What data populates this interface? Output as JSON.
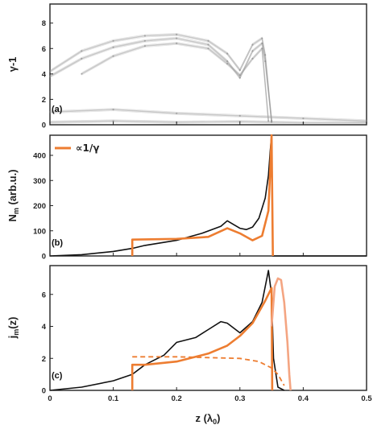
{
  "chart_data": [
    {
      "panel": "(a)",
      "type": "scatter",
      "ylabel": "γ-1",
      "xlim": [
        0,
        0.5
      ],
      "ylim": [
        0,
        9.5
      ],
      "yticks": [
        0,
        2,
        4,
        6,
        8
      ],
      "ytick_labels": [
        "0",
        "2",
        "4",
        "6",
        "8"
      ],
      "series": [
        {
          "x": [
            0.0,
            0.05,
            0.1,
            0.15,
            0.2,
            0.25,
            0.28,
            0.3,
            0.32,
            0.335,
            0.34,
            0.35
          ],
          "y": [
            4.2,
            5.8,
            6.6,
            7.0,
            7.1,
            6.6,
            5.6,
            4.3,
            6.3,
            6.8,
            5.5,
            0.3
          ]
        },
        {
          "x": [
            0.0,
            0.05,
            0.1,
            0.15,
            0.2,
            0.25,
            0.28,
            0.3,
            0.32,
            0.335,
            0.34,
            0.35
          ],
          "y": [
            3.8,
            5.2,
            6.1,
            6.6,
            6.8,
            6.3,
            5.0,
            3.7,
            5.8,
            6.4,
            5.0,
            0.3
          ]
        },
        {
          "x": [
            0.05,
            0.1,
            0.15,
            0.2,
            0.25,
            0.28,
            0.3,
            0.32,
            0.335,
            0.345
          ],
          "y": [
            4.0,
            5.4,
            6.2,
            6.4,
            6.0,
            4.8,
            3.9,
            5.2,
            6.0,
            0.3
          ]
        },
        {
          "x": [
            0.0,
            0.1,
            0.2,
            0.3,
            0.4,
            0.5
          ],
          "y": [
            1.0,
            1.2,
            0.9,
            0.7,
            0.5,
            0.3
          ]
        },
        {
          "x": [
            0.0,
            0.1,
            0.2,
            0.3,
            0.35,
            0.4,
            0.5
          ],
          "y": [
            0.2,
            0.3,
            0.2,
            0.25,
            0.2,
            0.15,
            0.15
          ]
        }
      ]
    },
    {
      "panel": "(b)",
      "type": "line",
      "ylabel": "N_m (arb.u.)",
      "xlim": [
        0,
        0.5
      ],
      "ylim": [
        0,
        480
      ],
      "yticks": [
        0,
        100,
        200,
        300,
        400
      ],
      "ytick_labels": [
        "0",
        "100",
        "200",
        "300",
        "400"
      ],
      "legend": {
        "position": "top-left",
        "entries": [
          "∝1/γ"
        ]
      },
      "series": [
        {
          "name": "",
          "color": "#111111",
          "x": [
            0.0,
            0.05,
            0.1,
            0.13,
            0.15,
            0.2,
            0.24,
            0.27,
            0.28,
            0.29,
            0.3,
            0.31,
            0.32,
            0.33,
            0.34,
            0.345,
            0.348,
            0.35,
            0.352,
            0.36,
            0.5
          ],
          "y": [
            0,
            5,
            18,
            30,
            42,
            62,
            90,
            118,
            140,
            125,
            110,
            105,
            115,
            150,
            230,
            320,
            420,
            480,
            0,
            0,
            0
          ]
        },
        {
          "name": "∝1/γ",
          "color": "#ed7d31",
          "x": [
            0.13,
            0.13,
            0.15,
            0.2,
            0.25,
            0.28,
            0.3,
            0.32,
            0.335,
            0.345,
            0.348,
            0.35,
            0.35,
            0.352
          ],
          "y": [
            0,
            65,
            66,
            68,
            76,
            110,
            90,
            62,
            80,
            180,
            350,
            480,
            480,
            0
          ]
        }
      ]
    },
    {
      "panel": "(c)",
      "type": "line",
      "ylabel": "j_m(z)",
      "xlabel": "z (λ0)",
      "xlim": [
        0,
        0.5
      ],
      "ylim": [
        0,
        7.8
      ],
      "yticks": [
        0,
        2,
        4,
        6
      ],
      "ytick_labels": [
        "0",
        "2",
        "4",
        "6"
      ],
      "xticks": [
        0,
        0.1,
        0.2,
        0.3,
        0.4,
        0.5
      ],
      "xtick_labels": [
        "0",
        "0.1",
        "0.2",
        "0.3",
        "0.4",
        "0.5"
      ],
      "series": [
        {
          "name": "",
          "color": "#111111",
          "x": [
            0.0,
            0.05,
            0.1,
            0.13,
            0.15,
            0.18,
            0.2,
            0.23,
            0.25,
            0.27,
            0.28,
            0.3,
            0.32,
            0.335,
            0.345,
            0.35,
            0.353,
            0.36,
            0.37
          ],
          "y": [
            0,
            0.2,
            0.6,
            1.0,
            1.6,
            2.2,
            3.0,
            3.3,
            3.8,
            4.3,
            4.2,
            3.6,
            4.3,
            5.5,
            7.5,
            6.0,
            2.0,
            0.2,
            0.0
          ]
        },
        {
          "name": "",
          "color": "#ed7d31",
          "x": [
            0.13,
            0.13,
            0.15,
            0.2,
            0.25,
            0.28,
            0.3,
            0.32,
            0.34,
            0.35,
            0.35,
            0.351
          ],
          "y": [
            0,
            1.6,
            1.6,
            1.8,
            2.3,
            2.8,
            3.4,
            4.2,
            5.6,
            6.4,
            6.4,
            0.0
          ]
        },
        {
          "name": "",
          "color": "#ed7d31",
          "dashed": true,
          "x": [
            0.13,
            0.15,
            0.2,
            0.25,
            0.3,
            0.33,
            0.35,
            0.36,
            0.37
          ],
          "y": [
            2.1,
            2.1,
            2.1,
            2.05,
            2.0,
            1.8,
            1.4,
            1.0,
            0.3
          ]
        },
        {
          "name": "",
          "color": "#f4a582",
          "x": [
            0.35,
            0.355,
            0.36,
            0.365,
            0.37,
            0.375,
            0.378,
            0.38
          ],
          "y": [
            4.0,
            6.5,
            7.0,
            6.9,
            5.5,
            3.0,
            1.0,
            0.0
          ]
        }
      ]
    }
  ]
}
